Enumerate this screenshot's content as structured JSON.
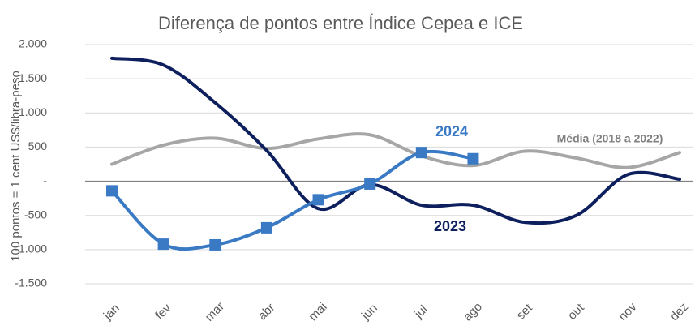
{
  "chart_data": {
    "type": "line",
    "title": "Diferença de pontos entre Índice Cepea e ICE",
    "y_label": "100 pontos = 1 cent US$/libra-peso",
    "categories": [
      "jan",
      "fev",
      "mar",
      "abr",
      "mai",
      "jun",
      "jul",
      "ago",
      "set",
      "out",
      "nov",
      "dez"
    ],
    "series": [
      {
        "name": "Média (2018 a 2022)",
        "color": "#a6a6a6",
        "values": [
          250,
          530,
          630,
          480,
          620,
          680,
          370,
          230,
          440,
          340,
          200,
          420
        ]
      },
      {
        "name": "2023",
        "color": "#0d1f5c",
        "values": [
          1800,
          1700,
          1150,
          450,
          -400,
          -50,
          -350,
          -350,
          -600,
          -500,
          100,
          30
        ]
      },
      {
        "name": "2024",
        "color": "#3a7ac4",
        "markers": true,
        "values": [
          -140,
          -920,
          -930,
          -680,
          -270,
          -40,
          420,
          330,
          null,
          null,
          null,
          null
        ]
      }
    ],
    "ylim": [
      -1500,
      2000
    ],
    "yticks": [
      {
        "value": -1500,
        "label": "-1.500"
      },
      {
        "value": -1000,
        "label": "-1.000"
      },
      -500,
      {
        "value": 0,
        "label": "-"
      },
      500,
      {
        "value": 1000,
        "label": "1.000"
      },
      {
        "value": 1500,
        "label": "1.500"
      },
      {
        "value": 2000,
        "label": "2.000"
      }
    ],
    "grid": true
  }
}
